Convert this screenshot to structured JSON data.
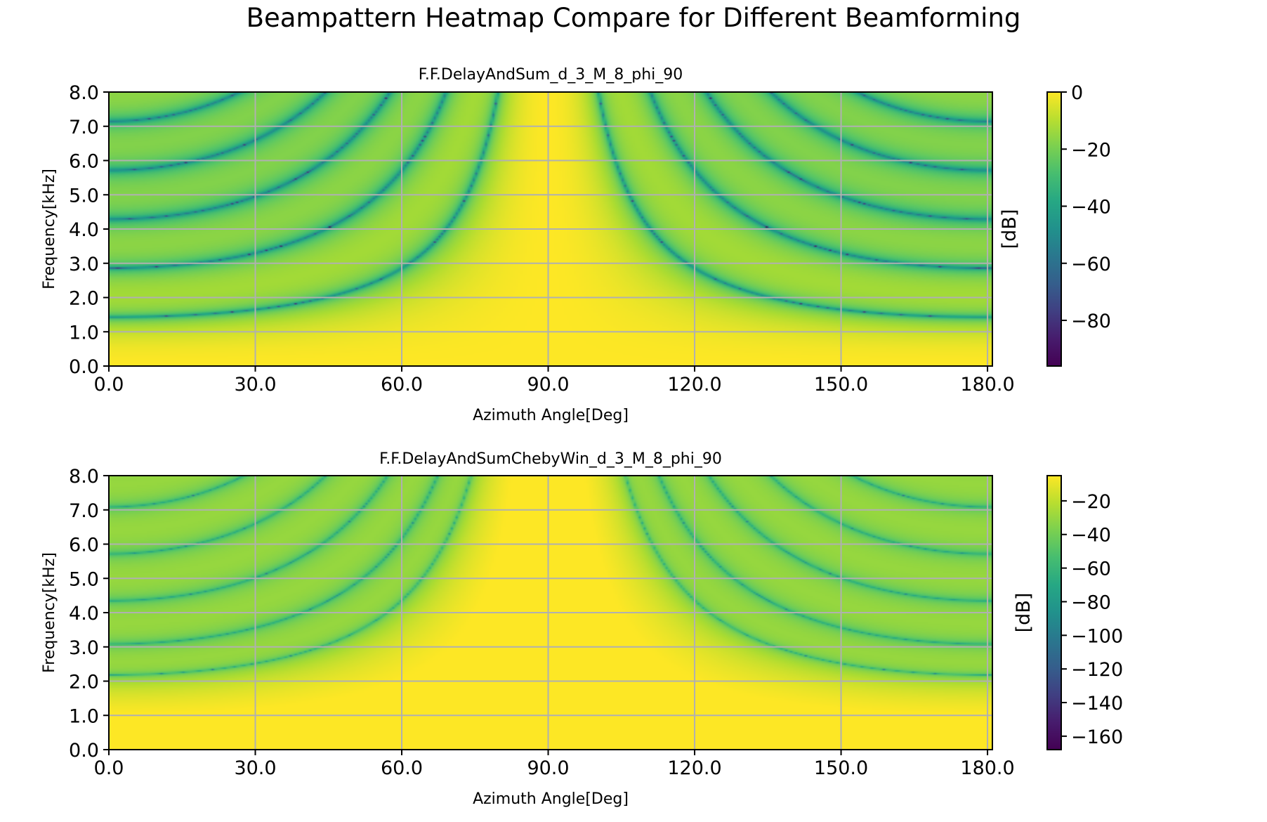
{
  "figure": {
    "suptitle": "Beampattern Heatmap Compare for Different Beamforming"
  },
  "chart_data": [
    {
      "type": "heatmap",
      "title": "F.F.DelayAndSum_d_3_M_8_phi_90",
      "xlabel": "Azimuth Angle[Deg]",
      "ylabel": "Frequency[kHz]",
      "xlim": [
        0,
        181
      ],
      "ylim": [
        0,
        8
      ],
      "xticks": [
        "0.0",
        "30.0",
        "60.0",
        "90.0",
        "120.0",
        "150.0",
        "180.0"
      ],
      "yticks": [
        "0.0",
        "1.0",
        "2.0",
        "3.0",
        "4.0",
        "5.0",
        "6.0",
        "7.0",
        "8.0"
      ],
      "grid": true,
      "colormap": "viridis",
      "model": {
        "array": "delay-and-sum",
        "spacing_cm": 3,
        "mics": 8,
        "steer_deg": 90,
        "window": "rectangular"
      },
      "colorbar": {
        "label": "[dB]",
        "vmin": -96,
        "vmax": 0,
        "ticks": [
          "0",
          "−20",
          "−40",
          "−60",
          "−80"
        ]
      }
    },
    {
      "type": "heatmap",
      "title": "F.F.DelayAndSumChebyWin_d_3_M_8_phi_90",
      "xlabel": "Azimuth Angle[Deg]",
      "ylabel": "Frequency[kHz]",
      "xlim": [
        0,
        181
      ],
      "ylim": [
        0,
        8
      ],
      "xticks": [
        "0.0",
        "30.0",
        "60.0",
        "90.0",
        "120.0",
        "150.0",
        "180.0"
      ],
      "yticks": [
        "0.0",
        "1.0",
        "2.0",
        "3.0",
        "4.0",
        "5.0",
        "6.0",
        "7.0",
        "8.0"
      ],
      "grid": true,
      "colormap": "viridis",
      "model": {
        "array": "delay-and-sum",
        "spacing_cm": 3,
        "mics": 8,
        "steer_deg": 90,
        "window": "chebyshev"
      },
      "colorbar": {
        "label": "[dB]",
        "vmin": -168,
        "vmax": -5,
        "ticks": [
          "−20",
          "−40",
          "−60",
          "−80",
          "−100",
          "−120",
          "−140",
          "−160"
        ]
      }
    }
  ],
  "colors": {
    "viridis_low": "#440154",
    "viridis_mid": "#21918c",
    "viridis_high": "#fde725",
    "grid": "#b0b0b0"
  }
}
